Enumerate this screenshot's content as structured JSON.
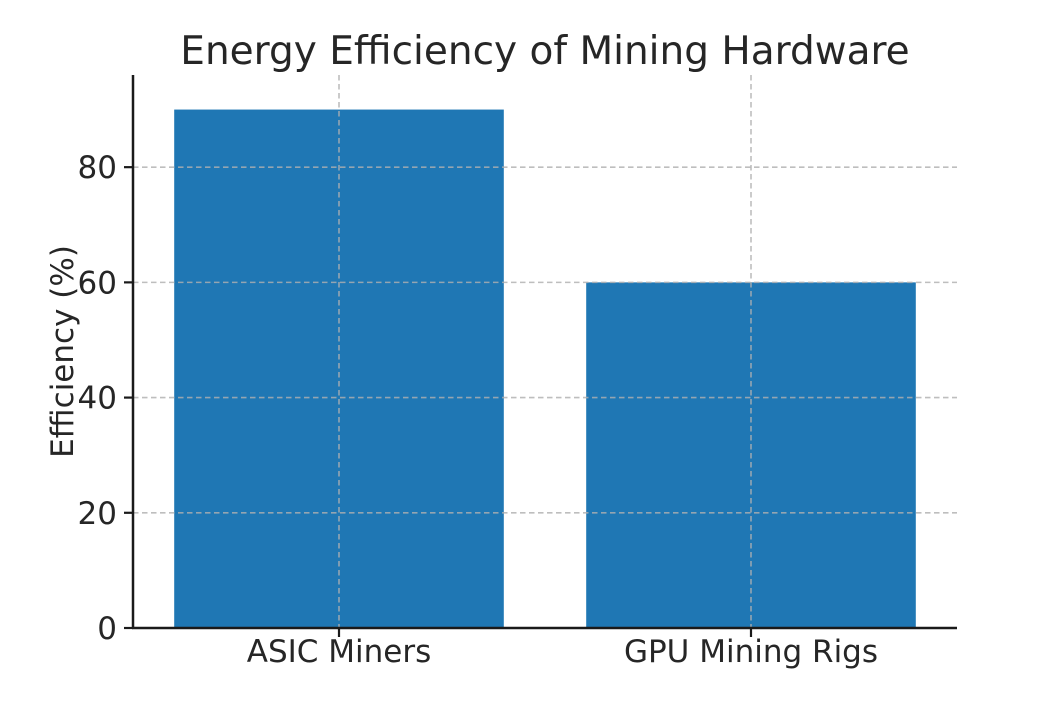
{
  "chart_data": {
    "type": "bar",
    "title": "Energy Efficiency of Mining Hardware",
    "xlabel": "",
    "ylabel": "Efficiency (%)",
    "categories": [
      "ASIC Miners",
      "GPU Mining Rigs"
    ],
    "values": [
      90,
      60
    ],
    "yticks": [
      0,
      20,
      40,
      60,
      80
    ],
    "ylim": [
      0,
      96
    ],
    "xlim_units": 2,
    "bar_width_fraction": 0.8,
    "grid": "dashed, horizontal and vertical, drawn above bars",
    "legend": "none"
  },
  "colors": {
    "bar": "#1f77b4",
    "grid": "#b0b0b0",
    "spine": "#1a1a1a",
    "text": "#262626",
    "background": "#ffffff"
  }
}
